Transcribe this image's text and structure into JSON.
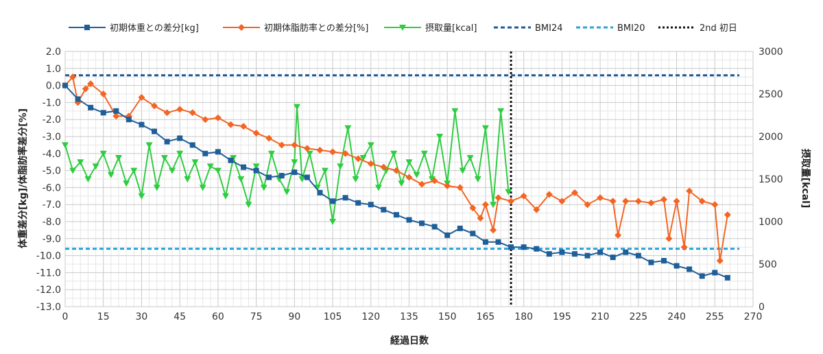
{
  "chart_data": {
    "type": "line",
    "title": "",
    "xlabel": "経過日数",
    "ylabel_left": "体重差分[kg]/体脂肪率差分[%]",
    "ylabel_right": "摂取量[kcal]",
    "xlim": [
      0,
      270
    ],
    "ylim_left": [
      -13,
      2
    ],
    "ylim_right": [
      0,
      3000
    ],
    "x_ticks": [
      0,
      15,
      30,
      45,
      60,
      75,
      90,
      105,
      120,
      135,
      150,
      165,
      180,
      195,
      210,
      225,
      240,
      255,
      270
    ],
    "y_left_ticks": [
      "2.0",
      "1.0",
      "0.0",
      "-1.0",
      "-2.0",
      "-3.0",
      "-4.0",
      "-5.0",
      "-6.0",
      "-7.0",
      "-8.0",
      "-9.0",
      "-10.0",
      "-11.0",
      "-12.0",
      "-13.0"
    ],
    "y_right_ticks": [
      "3000",
      "2500",
      "2000",
      "1500",
      "1000",
      "500",
      "0"
    ],
    "grid": true,
    "legend_position": "top",
    "series": [
      {
        "name": "初期体重との差分[kg]",
        "axis": "left",
        "color": "#1f5f99",
        "marker": "square",
        "x": [
          0,
          5,
          10,
          15,
          20,
          25,
          30,
          35,
          40,
          45,
          50,
          55,
          60,
          65,
          70,
          75,
          80,
          85,
          90,
          95,
          100,
          105,
          110,
          115,
          120,
          125,
          130,
          135,
          140,
          145,
          150,
          155,
          160,
          165,
          170,
          175,
          180,
          185,
          190,
          195,
          200,
          205,
          210,
          215,
          220,
          225,
          230,
          235,
          240,
          245,
          250,
          255,
          260
        ],
        "y": [
          0.0,
          -0.8,
          -1.3,
          -1.6,
          -1.5,
          -2.0,
          -2.3,
          -2.7,
          -3.3,
          -3.1,
          -3.5,
          -4.0,
          -3.9,
          -4.4,
          -4.8,
          -5.0,
          -5.4,
          -5.3,
          -5.1,
          -5.4,
          -6.3,
          -6.8,
          -6.6,
          -6.9,
          -7.0,
          -7.3,
          -7.6,
          -7.9,
          -8.1,
          -8.3,
          -8.8,
          -8.4,
          -8.7,
          -9.2,
          -9.2,
          -9.5,
          -9.5,
          -9.6,
          -9.9,
          -9.8,
          -9.9,
          -10.0,
          -9.8,
          -10.1,
          -9.8,
          -10.0,
          -10.4,
          -10.3,
          -10.6,
          -10.8,
          -11.2,
          -11.0,
          -11.3
        ]
      },
      {
        "name": "初期体脂肪率との差分[%]",
        "axis": "left",
        "color": "#f26522",
        "marker": "diamond",
        "x": [
          0,
          3,
          5,
          8,
          10,
          15,
          20,
          25,
          30,
          35,
          40,
          45,
          50,
          55,
          60,
          65,
          70,
          75,
          80,
          85,
          90,
          95,
          100,
          105,
          110,
          115,
          120,
          125,
          130,
          135,
          140,
          145,
          150,
          155,
          160,
          163,
          165,
          168,
          170,
          175,
          180,
          185,
          190,
          195,
          200,
          205,
          210,
          215,
          217,
          220,
          225,
          230,
          235,
          237,
          240,
          243,
          245,
          250,
          255,
          257,
          260
        ],
        "y": [
          0.0,
          0.5,
          -1.0,
          -0.2,
          0.1,
          -0.5,
          -1.8,
          -1.8,
          -0.7,
          -1.2,
          -1.6,
          -1.4,
          -1.6,
          -2.0,
          -1.9,
          -2.3,
          -2.4,
          -2.8,
          -3.1,
          -3.5,
          -3.5,
          -3.7,
          -3.8,
          -3.9,
          -4.0,
          -4.3,
          -4.6,
          -4.8,
          -5.0,
          -5.4,
          -5.8,
          -5.6,
          -5.9,
          -6.0,
          -7.2,
          -7.8,
          -7.0,
          -8.5,
          -6.6,
          -6.8,
          -6.5,
          -7.3,
          -6.4,
          -6.8,
          -6.3,
          -7.0,
          -6.6,
          -6.8,
          -8.8,
          -6.8,
          -6.8,
          -6.9,
          -6.7,
          -9.0,
          -6.8,
          -9.5,
          -6.2,
          -6.8,
          -7.0,
          -10.3,
          -7.6
        ]
      },
      {
        "name": "摂取量[kcal]",
        "axis": "right",
        "color": "#2ecc40",
        "marker": "triangle-down",
        "x": [
          0,
          3,
          6,
          9,
          12,
          15,
          18,
          21,
          24,
          27,
          30,
          33,
          36,
          39,
          42,
          45,
          48,
          51,
          54,
          57,
          60,
          63,
          66,
          69,
          72,
          75,
          78,
          81,
          84,
          87,
          90,
          91,
          93,
          96,
          99,
          102,
          105,
          108,
          111,
          114,
          117,
          120,
          123,
          126,
          129,
          132,
          135,
          138,
          141,
          144,
          147,
          150,
          153,
          156,
          159,
          162,
          165,
          168,
          171,
          174
        ],
        "y": [
          1900,
          1600,
          1700,
          1500,
          1650,
          1800,
          1550,
          1750,
          1450,
          1600,
          1300,
          1900,
          1400,
          1750,
          1600,
          1800,
          1500,
          1700,
          1400,
          1650,
          1600,
          1300,
          1750,
          1500,
          1200,
          1650,
          1400,
          1800,
          1500,
          1350,
          1700,
          2350,
          1500,
          1800,
          1400,
          1600,
          1000,
          1650,
          2100,
          1500,
          1750,
          1900,
          1400,
          1600,
          1800,
          1450,
          1700,
          1550,
          1800,
          1500,
          2000,
          1450,
          2300,
          1600,
          1750,
          1500,
          2100,
          1200,
          2300,
          1350
        ]
      }
    ],
    "reference_lines": [
      {
        "name": "BMI24",
        "orientation": "horizontal",
        "axis": "left",
        "value": 0.6,
        "color": "#1a5a96",
        "style": "dashed"
      },
      {
        "name": "BMI20",
        "orientation": "horizontal",
        "axis": "left",
        "value": -9.6,
        "color": "#29a3d9",
        "style": "dashed"
      },
      {
        "name": "2nd 初日",
        "orientation": "vertical",
        "axis": "x",
        "value": 175,
        "color": "#111111",
        "style": "dotted"
      }
    ]
  }
}
